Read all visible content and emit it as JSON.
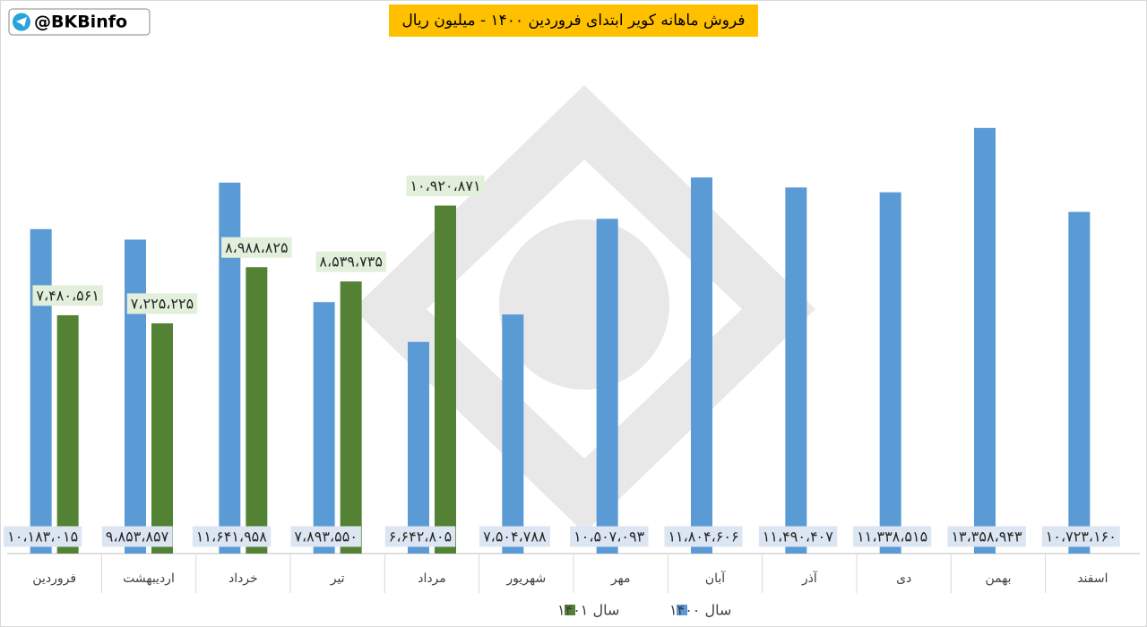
{
  "chart_data": {
    "type": "bar",
    "title": "فروش ماهانه کویر ابتدای فروردین ۱۴۰۰ - میلیون ریال",
    "source": "@BKBinfo",
    "categories": [
      "فروردین",
      "اردیبهشت",
      "خرداد",
      "تیر",
      "مرداد",
      "شهریور",
      "مهر",
      "آبان",
      "آذر",
      "دی",
      "بهمن",
      "اسفند"
    ],
    "series": [
      {
        "name": "سال ۱۴۰۰",
        "color": "#5b9bd5",
        "values": [
          10183015,
          9853857,
          11641958,
          7893550,
          6642805,
          7504788,
          10507093,
          11804606,
          11490407,
          11338515,
          13358943,
          10723160
        ],
        "value_labels": [
          "۱۰،۱۸۳،۰۱۵",
          "۹،۸۵۳،۸۵۷",
          "۱۱،۶۴۱،۹۵۸",
          "۷،۸۹۳،۵۵۰",
          "۶،۶۴۲،۸۰۵",
          "۷،۵۰۴،۷۸۸",
          "۱۰،۵۰۷،۰۹۳",
          "۱۱،۸۰۴،۶۰۶",
          "۱۱،۴۹۰،۴۰۷",
          "۱۱،۳۳۸،۵۱۵",
          "۱۳،۳۵۸،۹۴۳",
          "۱۰،۷۲۳،۱۶۰"
        ]
      },
      {
        "name": "سال ۱۴۰۱",
        "color": "#548235",
        "values": [
          7480561,
          7225225,
          8988825,
          8539735,
          10920871,
          null,
          null,
          null,
          null,
          null,
          null,
          null
        ],
        "value_labels": [
          "۷،۴۸۰،۵۶۱",
          "۷،۲۲۵،۲۲۵",
          "۸،۹۸۸،۸۲۵",
          "۸،۵۳۹،۷۳۵",
          "۱۰،۹۲۰،۸۷۱",
          null,
          null,
          null,
          null,
          null,
          null,
          null
        ]
      }
    ],
    "ylim": [
      0,
      14000000
    ]
  }
}
